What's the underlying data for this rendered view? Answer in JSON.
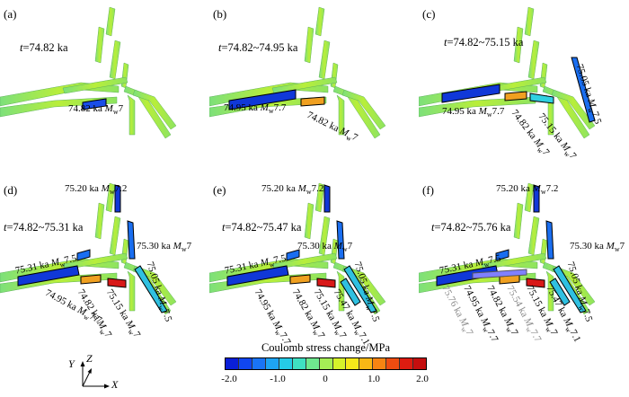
{
  "panels": [
    {
      "label": "(a)",
      "time": "t=74.82 ka",
      "annotations": [
        {
          "text": "74.82 ka  M",
          "sub": "w",
          "rest": "7",
          "color": "black"
        }
      ]
    },
    {
      "label": "(b)",
      "time": "t=74.82~74.95 ka",
      "annotations": [
        {
          "text": "74.95 ka  M",
          "sub": "w",
          "rest": "7.7"
        },
        {
          "text": "74.82 ka  M",
          "sub": "w",
          "rest": "7"
        }
      ]
    },
    {
      "label": "(c)",
      "time": "t=74.82~75.15 ka",
      "annotations": [
        {
          "text": "74.95 ka  M",
          "sub": "w",
          "rest": "7.7"
        },
        {
          "text": "74.82 ka  M",
          "sub": "w",
          "rest": "7"
        },
        {
          "text": "75.15 ka  M",
          "sub": "w",
          "rest": "7"
        },
        {
          "text": "75.05 ka  M",
          "sub": "w",
          "rest": "7.5"
        }
      ]
    },
    {
      "label": "(d)",
      "time": "t=74.82~75.31 ka",
      "annotations": [
        {
          "text": "75.20 ka  M",
          "sub": "w",
          "rest": "7.2"
        },
        {
          "text": "75.30 ka  M",
          "sub": "w",
          "rest": "7"
        },
        {
          "text": "75.31 ka  M",
          "sub": "w",
          "rest": "7.5"
        },
        {
          "text": "75.05 ka  M",
          "sub": "w",
          "rest": "7.5"
        },
        {
          "text": "74.95 ka  M",
          "sub": "w",
          "rest": "7.7"
        },
        {
          "text": "74.82 ka  M",
          "sub": "w",
          "rest": "7"
        },
        {
          "text": "75.15 ka  M",
          "sub": "w",
          "rest": "7"
        }
      ]
    },
    {
      "label": "(e)",
      "time": "t=74.82~75.47 ka",
      "annotations": [
        {
          "text": "75.20 ka  M",
          "sub": "w",
          "rest": "7.2"
        },
        {
          "text": "75.30 ka  M",
          "sub": "w",
          "rest": "7"
        },
        {
          "text": "75.31 ka  M",
          "sub": "w",
          "rest": "7.5"
        },
        {
          "text": "75.05 ka  M",
          "sub": "w",
          "rest": "7.5"
        },
        {
          "text": "74.95 ka  M",
          "sub": "w",
          "rest": "7.7"
        },
        {
          "text": "74.82 ka  M",
          "sub": "w",
          "rest": "7"
        },
        {
          "text": "75.15 ka  M",
          "sub": "w",
          "rest": "7"
        },
        {
          "text": "75.47 ka  M",
          "sub": "w",
          "rest": "7.1"
        }
      ]
    },
    {
      "label": "(f)",
      "time": "t=74.82~75.76 ka",
      "annotations": [
        {
          "text": "75.20 ka  M",
          "sub": "w",
          "rest": "7.2"
        },
        {
          "text": "75.30 ka  M",
          "sub": "w",
          "rest": "7"
        },
        {
          "text": "75.31 ka  M",
          "sub": "w",
          "rest": "7.5"
        },
        {
          "text": "75.05 ka  M",
          "sub": "w",
          "rest": "7.5"
        },
        {
          "text": "75.76 ka  M",
          "sub": "w",
          "rest": "7"
        },
        {
          "text": "74.95 ka  M",
          "sub": "w",
          "rest": "7.7"
        },
        {
          "text": "74.82 ka  M",
          "sub": "w",
          "rest": "7"
        },
        {
          "text": "75.54 ka  M",
          "sub": "w",
          "rest": "7.7"
        },
        {
          "text": "75.15 ka  M",
          "sub": "w",
          "rest": "7"
        },
        {
          "text": "75.47 ka  M",
          "sub": "w",
          "rest": "7.1"
        }
      ]
    }
  ],
  "colorbar": {
    "title": "Coulomb stress change/MPa",
    "ticks": [
      "-2.0",
      "-1.0",
      "0",
      "1.0",
      "2.0"
    ],
    "colors": [
      "#0a1fd8",
      "#1046f0",
      "#1a74f5",
      "#1ea4f3",
      "#25cbe6",
      "#3fe0c2",
      "#6fe88e",
      "#a5ee55",
      "#d6f22a",
      "#f6e81a",
      "#f9b815",
      "#f68412",
      "#ee4c10",
      "#dd1c10",
      "#c40e0e"
    ]
  },
  "axes": {
    "x": "X",
    "y": "Y",
    "z": "Z"
  },
  "colors": {
    "fault_outline": "#000000",
    "highlight_red": "#d81818",
    "gray_text": "#8a8a8a"
  }
}
